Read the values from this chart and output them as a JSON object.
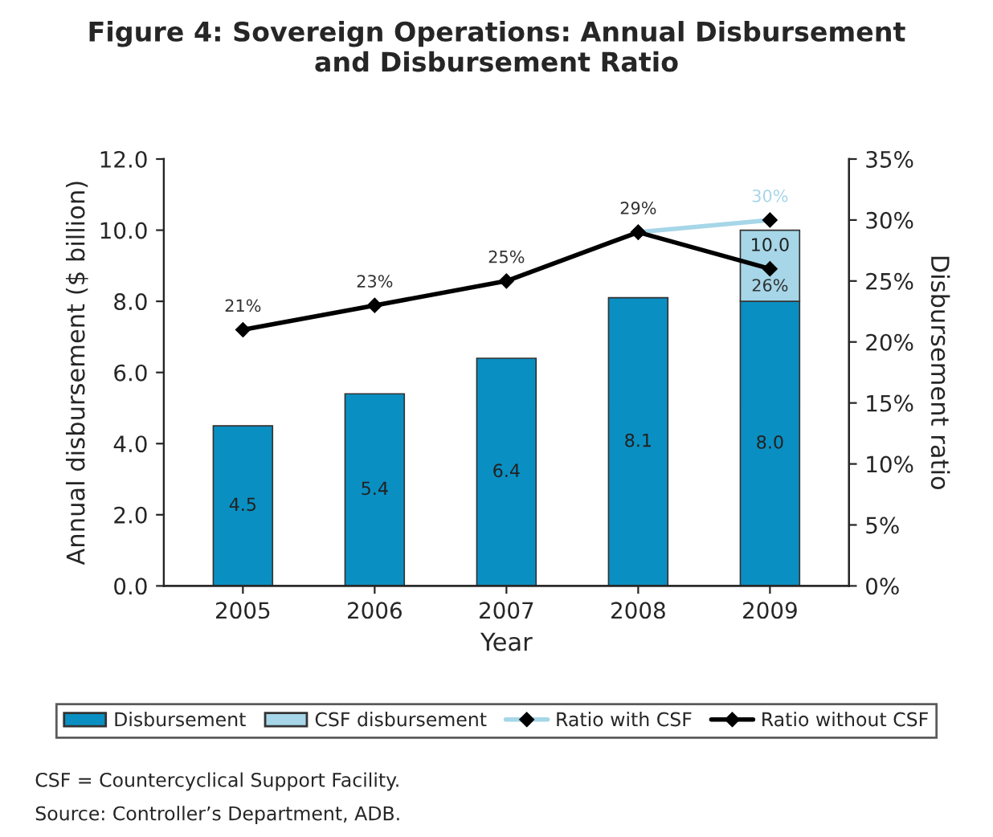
{
  "chart_data": {
    "type": "bar",
    "title": "Figure 4: Sovereign Operations: Annual Disbursement\nand Disbursement Ratio",
    "xlabel": "Year",
    "ylabel": "Annual disbursement ($ billion)",
    "y2label": "Disbursement ratio",
    "categories": [
      "2005",
      "2006",
      "2007",
      "2008",
      "2009"
    ],
    "stacked": true,
    "series": [
      {
        "name": "Disbursement",
        "color": "#0a8fc2",
        "values": [
          4.5,
          5.4,
          6.4,
          8.1,
          8.0
        ],
        "value_labels": [
          "4.5",
          "5.4",
          "6.4",
          "8.1",
          "8.0"
        ]
      },
      {
        "name": "CSF disbursement",
        "color": "#a6d6e8",
        "values": [
          null,
          null,
          null,
          null,
          2.0
        ]
      },
      {
        "name": "Ratio with CSF",
        "type": "line",
        "axis": "y2",
        "color": "#a6d6e8",
        "values": [
          null,
          null,
          null,
          29,
          30
        ],
        "value_labels": [
          null,
          null,
          null,
          null,
          "30%"
        ]
      },
      {
        "name": "Ratio without CSF",
        "type": "line",
        "axis": "y2",
        "color": "#000000",
        "values": [
          21,
          23,
          25,
          29,
          26
        ],
        "value_labels": [
          "21%",
          "23%",
          "25%",
          "29%",
          "26%"
        ]
      }
    ],
    "ylim": [
      0,
      12
    ],
    "yticks": [
      {
        "value": 0,
        "label": "0.0"
      },
      {
        "value": 2,
        "label": "2.0"
      },
      {
        "value": 4,
        "label": "4.0"
      },
      {
        "value": 6,
        "label": "6.0"
      },
      {
        "value": 8,
        "label": "8.0"
      },
      {
        "value": 10,
        "label": "10.0"
      },
      {
        "value": 12,
        "label": "12.0"
      }
    ],
    "y2lim": [
      0,
      35
    ],
    "y2ticks": [
      {
        "value": 0,
        "label": "0%"
      },
      {
        "value": 5,
        "label": "5%"
      },
      {
        "value": 10,
        "label": "10%"
      },
      {
        "value": 15,
        "label": "15%"
      },
      {
        "value": 20,
        "label": "20%"
      },
      {
        "value": 25,
        "label": "25%"
      },
      {
        "value": 30,
        "label": "30%"
      },
      {
        "value": 35,
        "label": "35%"
      }
    ],
    "totals": [
      null,
      null,
      null,
      null,
      "10.0"
    ],
    "marker": "diamond",
    "grid": false,
    "legend": "bottom",
    "annotations": [
      "CSF = Countercyclical Support Facility.",
      "Source: Controller’s Department, ADB."
    ]
  }
}
